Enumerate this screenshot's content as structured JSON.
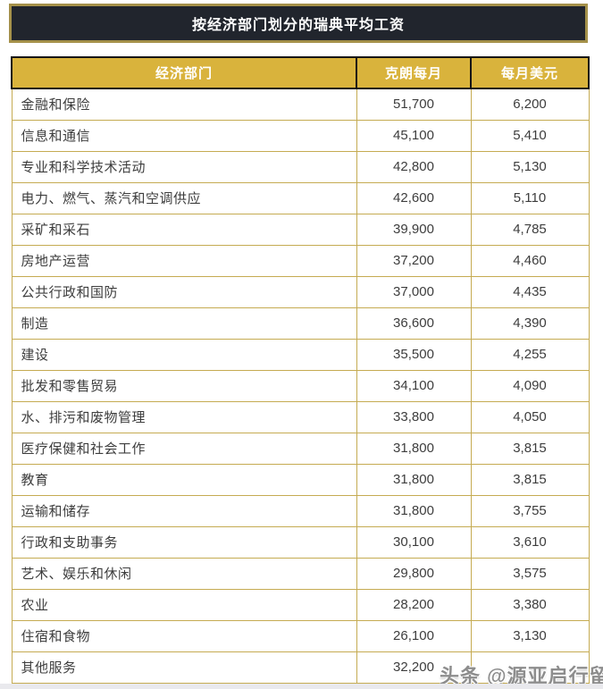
{
  "ui": {
    "watermark": "头条 @源亚启行留学"
  },
  "colors": {
    "title_bar_bg": "#21252d",
    "title_bar_border": "#a5914a",
    "header_bg": "#d9b33c",
    "header_text": "#ffffff",
    "header_border": "#161616",
    "body_border": "#c5ab52",
    "body_text": "#3d3d3d"
  },
  "chart_data": {
    "type": "table",
    "title": "按经济部门划分的瑞典平均工资",
    "columns": [
      "经济部门",
      "克朗每月",
      "每月美元"
    ],
    "rows": [
      {
        "sector": "金融和保险",
        "sek": "51,700",
        "usd": "6,200"
      },
      {
        "sector": "信息和通信",
        "sek": "45,100",
        "usd": "5,410"
      },
      {
        "sector": "专业和科学技术活动",
        "sek": "42,800",
        "usd": "5,130"
      },
      {
        "sector": "电力、燃气、蒸汽和空调供应",
        "sek": "42,600",
        "usd": "5,110"
      },
      {
        "sector": "采矿和采石",
        "sek": "39,900",
        "usd": "4,785"
      },
      {
        "sector": "房地产运营",
        "sek": "37,200",
        "usd": "4,460"
      },
      {
        "sector": "公共行政和国防",
        "sek": "37,000",
        "usd": "4,435"
      },
      {
        "sector": "制造",
        "sek": "36,600",
        "usd": "4,390"
      },
      {
        "sector": "建设",
        "sek": "35,500",
        "usd": "4,255"
      },
      {
        "sector": "批发和零售贸易",
        "sek": "34,100",
        "usd": "4,090"
      },
      {
        "sector": "水、排污和废物管理",
        "sek": "33,800",
        "usd": "4,050"
      },
      {
        "sector": "医疗保健和社会工作",
        "sek": "31,800",
        "usd": "3,815"
      },
      {
        "sector": "教育",
        "sek": "31,800",
        "usd": "3,815"
      },
      {
        "sector": "运输和储存",
        "sek": "31,800",
        "usd": "3,755"
      },
      {
        "sector": "行政和支助事务",
        "sek": "30,100",
        "usd": "3,610"
      },
      {
        "sector": "艺术、娱乐和休闲",
        "sek": "29,800",
        "usd": "3,575"
      },
      {
        "sector": "农业",
        "sek": "28,200",
        "usd": "3,380"
      },
      {
        "sector": "住宿和食物",
        "sek": "26,100",
        "usd": "3,130"
      },
      {
        "sector": "其他服务",
        "sek": "32,200",
        "usd": ""
      }
    ]
  }
}
